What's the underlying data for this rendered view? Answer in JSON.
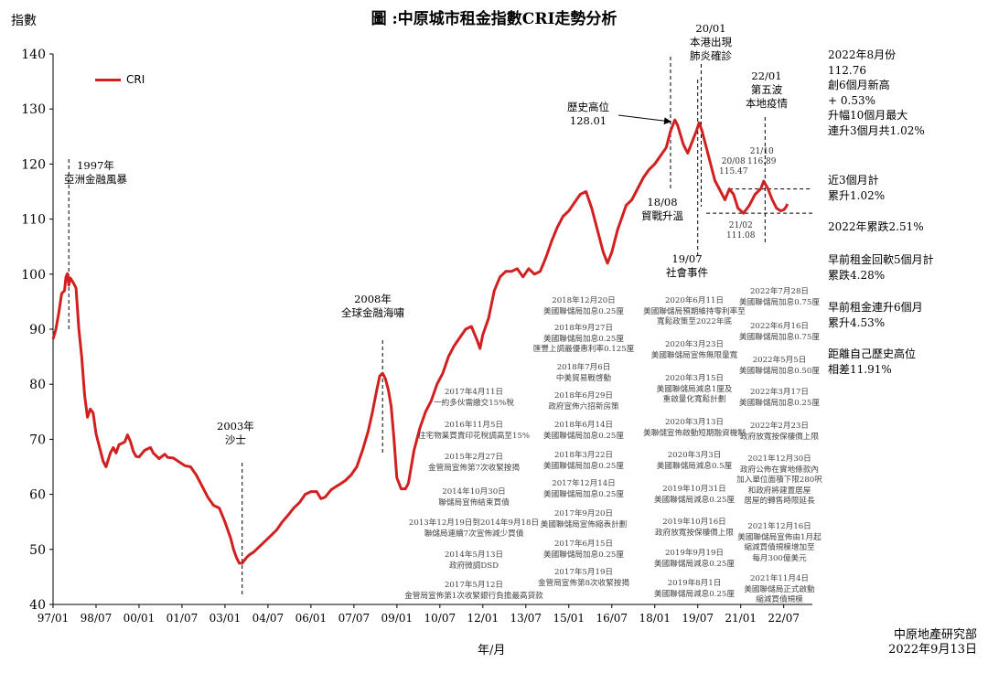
{
  "title": "圖 :中原城市租金指數CRI走勢分析",
  "y_axis_title": "指數",
  "x_axis_title": "年/月",
  "legend_label": "CRI",
  "source_line1": "中原地產研究部",
  "source_line2": "2022年9月13日",
  "colors": {
    "line": "#d21f1f",
    "axis": "#000000",
    "event_text": "#444444"
  },
  "annotations": {
    "crisis1997": [
      "1997年",
      "亞洲金融風暴"
    ],
    "sars2003": [
      "2003年",
      "沙士"
    ],
    "tsunami2008": [
      "2008年",
      "全球金融海嘯"
    ],
    "peak": [
      "歷史高位",
      "128.01"
    ],
    "trade": [
      "18/08",
      "貿戰升溫"
    ],
    "social": [
      "19/07",
      "社會事件"
    ],
    "covid": [
      "20/01",
      "本港出現",
      "肺炎確診"
    ],
    "wave5": [
      "22/01",
      "第五波",
      "本地疫情"
    ],
    "p2008": [
      "20/08",
      "115.47"
    ],
    "p2110": [
      "21/10",
      "116.89"
    ],
    "p2102": [
      "21/02",
      "111.08"
    ]
  },
  "side_notes": {
    "aug2022": [
      "2022年8月份",
      "112.76",
      "創6個月新高",
      "+ 0.53%",
      "升幅10個月最大",
      "連升3個月共1.02%"
    ],
    "three_month": [
      "近3個月計",
      "累升1.02%"
    ],
    "ytd": [
      "2022年累跌2.51%"
    ],
    "fell5": [
      "早前租金回軟5個月計",
      "累跌4.28%"
    ],
    "rose6": [
      "早前租金連升6個月",
      "累升4.53%"
    ],
    "from_peak": [
      "距離自己歷史高位",
      "相差11.91%"
    ]
  },
  "events": {
    "col1": [
      [
        "2017年4月11日",
        "一約多伙需繳交15%稅"
      ],
      [
        "2016年11月5日",
        "住宅物業買賣印花稅調高至15%"
      ],
      [
        "2015年2月27日",
        "金管局宣佈第7次收緊按揭"
      ],
      [
        "2014年10月30日",
        "聯儲局宣佈結束買債"
      ],
      [
        "2013年12月19日到2014年9月18日",
        "聯儲局連續7次宣佈減少買債"
      ],
      [
        "2014年5月13日",
        "政府微調DSD"
      ],
      [
        "2017年5月12日",
        "金管局宣佈第1次收緊銀行負擔最高貸款"
      ]
    ],
    "col2": [
      [
        "2018年12月20日",
        "美國聯儲局加息0.25厘"
      ],
      [
        "2018年9月27日",
        "美國聯儲局加息0.25厘",
        "匯豐上調最優惠利率0.125厘"
      ],
      [
        "2018年7月6日",
        "中美貿易戰啓動"
      ],
      [
        "2018年6月29日",
        "政府宣佈六招新房策"
      ],
      [
        "2018年6月14日",
        "美國聯儲局加息0.25厘"
      ],
      [
        "2018年3月22日",
        "美國聯儲局加息0.25厘"
      ],
      [
        "2017年12月14日",
        "美國聯儲局加息0.25厘"
      ],
      [
        "2017年9月20日",
        "美國聯儲局宣佈縮表計劃"
      ],
      [
        "2017年6月15日",
        "美國聯儲局加息0.25厘"
      ],
      [
        "2017年5月19日",
        "金管局宣佈第8次收緊按揭"
      ]
    ],
    "col3": [
      [
        "2020年6月11日",
        "美國聯儲局預期維持零利率至",
        "寬鬆政策至2022年底"
      ],
      [
        "2020年3月23日",
        "美國聯儲局宣佈無限量寬"
      ],
      [
        "2020年3月15日",
        "美國聯儲局減息1厘及",
        "重啟量化寬鬆計劃"
      ],
      [
        "2020年3月13日",
        "美聯儲宣佈啟動短期融資機制"
      ],
      [
        "2020年3月3日",
        "美國聯儲局減息0.5厘"
      ],
      [
        "2019年10月31日",
        "美國聯儲局減息0.25厘"
      ],
      [
        "2019年10月16日",
        "政府放寬按保樓價上限"
      ],
      [
        "2019年9月19日",
        "美國聯儲局減息0.25厘"
      ],
      [
        "2019年8月1日",
        "美國聯儲局減息0.25厘"
      ]
    ],
    "col4": [
      [
        "2022年7月28日",
        "美國聯儲局加息0.75厘"
      ],
      [
        "2022年6月16日",
        "美國聯儲局加息0.75厘"
      ],
      [
        "2022年5月5日",
        "美國聯儲局加息0.50厘"
      ],
      [
        "2022年3月17日",
        "美國聯儲局加息0.25厘"
      ],
      [
        "2022年2月23日",
        "政府放寬按保樓價上限"
      ],
      [
        "2021年12月30日",
        "政府公佈在實地條款內",
        "加入單位面積下限280呎",
        "和政府將建置居屋",
        "居屋的轉售時限延長"
      ],
      [
        "2021年12月16日",
        "美國聯儲局宣佈由1月起",
        "縮減買債規模增加至",
        "每月300億美元"
      ],
      [
        "2021年11月4日",
        "美國聯儲局正式啟動",
        "縮減買債規模"
      ]
    ]
  },
  "chart_data": {
    "type": "line",
    "title": "圖 :中原城市租金指數CRI走勢分析",
    "xlabel": "年/月",
    "ylabel": "指數",
    "ylim": [
      40,
      140
    ],
    "yticks": [
      40,
      50,
      60,
      70,
      80,
      90,
      100,
      110,
      120,
      130,
      140
    ],
    "xlim_year": [
      1997.0,
      2023.5
    ],
    "xticks": [
      "97/01",
      "98/07",
      "00/01",
      "01/07",
      "03/01",
      "04/07",
      "06/01",
      "07/07",
      "09/01",
      "10/07",
      "12/01",
      "13/07",
      "15/01",
      "16/07",
      "18/01",
      "19/07",
      "21/01",
      "22/07"
    ],
    "series": [
      {
        "name": "CRI",
        "points": [
          [
            1997.0,
            88.2
          ],
          [
            1997.1,
            90
          ],
          [
            1997.2,
            93
          ],
          [
            1997.3,
            96.5
          ],
          [
            1997.4,
            97
          ],
          [
            1997.45,
            99.5
          ],
          [
            1997.5,
            100.1
          ],
          [
            1997.55,
            98
          ],
          [
            1997.6,
            99.3
          ],
          [
            1997.7,
            98.5
          ],
          [
            1997.8,
            97.5
          ],
          [
            1997.9,
            90
          ],
          [
            1998.0,
            85
          ],
          [
            1998.1,
            78
          ],
          [
            1998.2,
            74
          ],
          [
            1998.3,
            75.5
          ],
          [
            1998.4,
            74.8
          ],
          [
            1998.5,
            71
          ],
          [
            1998.6,
            69
          ],
          [
            1998.75,
            66
          ],
          [
            1998.85,
            65
          ],
          [
            1999.0,
            67.5
          ],
          [
            1999.1,
            68.5
          ],
          [
            1999.2,
            67.5
          ],
          [
            1999.3,
            69
          ],
          [
            1999.5,
            69.5
          ],
          [
            1999.6,
            70.8
          ],
          [
            1999.7,
            69.6
          ],
          [
            1999.8,
            67.8
          ],
          [
            1999.9,
            66.9
          ],
          [
            2000.0,
            66.8
          ],
          [
            2000.2,
            68
          ],
          [
            2000.4,
            68.5
          ],
          [
            2000.5,
            67.5
          ],
          [
            2000.7,
            66.5
          ],
          [
            2000.9,
            67.3
          ],
          [
            2001.0,
            66.7
          ],
          [
            2001.2,
            66.6
          ],
          [
            2001.4,
            65.9
          ],
          [
            2001.6,
            65.2
          ],
          [
            2001.8,
            65
          ],
          [
            2002.0,
            63.5
          ],
          [
            2002.2,
            61.5
          ],
          [
            2002.4,
            59.5
          ],
          [
            2002.6,
            58
          ],
          [
            2002.8,
            57.5
          ],
          [
            2003.0,
            55
          ],
          [
            2003.2,
            52
          ],
          [
            2003.3,
            50
          ],
          [
            2003.4,
            48.5
          ],
          [
            2003.5,
            47.5
          ],
          [
            2003.6,
            47.5
          ],
          [
            2003.75,
            48.5
          ],
          [
            2003.85,
            49
          ],
          [
            2004.0,
            49.5
          ],
          [
            2004.2,
            50.5
          ],
          [
            2004.4,
            51.5
          ],
          [
            2004.6,
            52.5
          ],
          [
            2004.8,
            53.5
          ],
          [
            2005.0,
            55
          ],
          [
            2005.2,
            56.2
          ],
          [
            2005.4,
            57.5
          ],
          [
            2005.6,
            58.5
          ],
          [
            2005.8,
            60
          ],
          [
            2006.0,
            60.5
          ],
          [
            2006.2,
            60.5
          ],
          [
            2006.35,
            59.2
          ],
          [
            2006.5,
            59.5
          ],
          [
            2006.7,
            60.8
          ],
          [
            2006.9,
            61.5
          ],
          [
            2007.0,
            61.8
          ],
          [
            2007.2,
            62.5
          ],
          [
            2007.4,
            63.5
          ],
          [
            2007.6,
            65
          ],
          [
            2007.8,
            68
          ],
          [
            2008.0,
            71.5
          ],
          [
            2008.15,
            75
          ],
          [
            2008.3,
            79
          ],
          [
            2008.4,
            81.5
          ],
          [
            2008.5,
            82
          ],
          [
            2008.6,
            81
          ],
          [
            2008.7,
            79
          ],
          [
            2008.8,
            76
          ],
          [
            2008.9,
            70
          ],
          [
            2009.0,
            63
          ],
          [
            2009.15,
            61
          ],
          [
            2009.3,
            61
          ],
          [
            2009.4,
            62
          ],
          [
            2009.5,
            65
          ],
          [
            2009.6,
            68
          ],
          [
            2009.8,
            72
          ],
          [
            2010.0,
            75
          ],
          [
            2010.2,
            77
          ],
          [
            2010.4,
            80
          ],
          [
            2010.6,
            82
          ],
          [
            2010.8,
            85
          ],
          [
            2011.0,
            87
          ],
          [
            2011.2,
            88.5
          ],
          [
            2011.4,
            90
          ],
          [
            2011.6,
            90.5
          ],
          [
            2011.8,
            88
          ],
          [
            2011.9,
            86.5
          ],
          [
            2012.0,
            89
          ],
          [
            2012.2,
            92
          ],
          [
            2012.4,
            97
          ],
          [
            2012.6,
            99.5
          ],
          [
            2012.8,
            100.5
          ],
          [
            2013.0,
            100.5
          ],
          [
            2013.2,
            101
          ],
          [
            2013.4,
            99.5
          ],
          [
            2013.6,
            101
          ],
          [
            2013.8,
            100
          ],
          [
            2014.0,
            100.5
          ],
          [
            2014.2,
            103
          ],
          [
            2014.4,
            106
          ],
          [
            2014.6,
            108.5
          ],
          [
            2014.8,
            110.5
          ],
          [
            2015.0,
            111.5
          ],
          [
            2015.2,
            113
          ],
          [
            2015.4,
            114.5
          ],
          [
            2015.6,
            115
          ],
          [
            2015.8,
            112
          ],
          [
            2016.0,
            108
          ],
          [
            2016.2,
            104
          ],
          [
            2016.35,
            102
          ],
          [
            2016.5,
            104
          ],
          [
            2016.7,
            108
          ],
          [
            2016.9,
            111
          ],
          [
            2017.0,
            112.5
          ],
          [
            2017.2,
            113.5
          ],
          [
            2017.4,
            115.5
          ],
          [
            2017.6,
            117.5
          ],
          [
            2017.8,
            119
          ],
          [
            2018.0,
            120
          ],
          [
            2018.2,
            121.5
          ],
          [
            2018.4,
            123
          ],
          [
            2018.55,
            126
          ],
          [
            2018.7,
            128.01
          ],
          [
            2018.8,
            127
          ],
          [
            2019.0,
            123.5
          ],
          [
            2019.15,
            122
          ],
          [
            2019.3,
            124
          ],
          [
            2019.45,
            126
          ],
          [
            2019.55,
            127.5
          ],
          [
            2019.65,
            126
          ],
          [
            2019.8,
            123
          ],
          [
            2019.95,
            120
          ],
          [
            2020.1,
            117
          ],
          [
            2020.3,
            115
          ],
          [
            2020.45,
            113.5
          ],
          [
            2020.6,
            115.47
          ],
          [
            2020.75,
            114.5
          ],
          [
            2020.9,
            112
          ],
          [
            2021.1,
            111.08
          ],
          [
            2021.3,
            112.5
          ],
          [
            2021.5,
            114.5
          ],
          [
            2021.7,
            115.5
          ],
          [
            2021.8,
            116.89
          ],
          [
            2021.95,
            115.5
          ],
          [
            2022.1,
            113.5
          ],
          [
            2022.25,
            112
          ],
          [
            2022.4,
            111.5
          ],
          [
            2022.5,
            111.7
          ],
          [
            2022.58,
            112.2
          ],
          [
            2022.63,
            112.76
          ]
        ]
      }
    ],
    "labels": {
      "peak": {
        "x": 2018.7,
        "value": 128.01
      },
      "a": {
        "x": 2020.6,
        "value": 115.47
      },
      "b": {
        "x": 2021.8,
        "value": 116.89
      },
      "c": {
        "x": 2021.1,
        "value": 111.08
      },
      "latest": {
        "x": 2022.63,
        "value": 112.76
      }
    }
  }
}
